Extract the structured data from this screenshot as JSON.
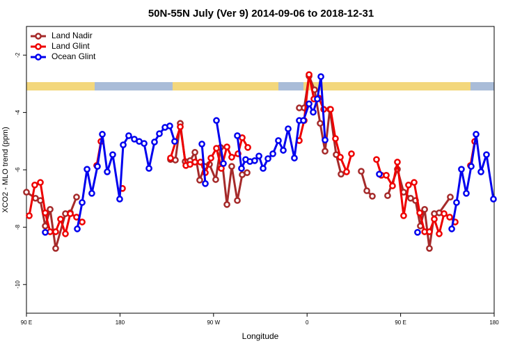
{
  "chart_data": {
    "type": "line",
    "title": "50N-55N July (Ver 9)   2014-09-06 to 2018-12-31",
    "x_label": "Longitude",
    "y_label": "XCO2 - MLO trend (ppm)",
    "xlim": [
      90,
      540
    ],
    "ylim": [
      -11,
      -1
    ],
    "xticks": [
      {
        "value": 90,
        "label": "90 E"
      },
      180,
      {
        "value": 270,
        "label": "90 W"
      },
      {
        "value": 360,
        "label": "0"
      },
      {
        "value": 450,
        "label": "90 E"
      },
      {
        "value": 540,
        "label": "180"
      }
    ],
    "yticks": [
      -10,
      -8,
      -6,
      -4,
      -2
    ],
    "legend": "top-left",
    "series": [
      {
        "name": "Land Nadir",
        "color": "#a52a2a",
        "x": [
          90,
          98.7,
          103.4,
          108.1,
          112.8,
          118.1,
          127.5,
          132.2,
          138.2,
          null,
          228.6,
          233.3,
          238.0,
          242.7,
          247.4,
          252.1,
          256.7,
          261.4,
          266.1,
          272.1,
          276.8,
          282.9,
          287.5,
          292.9,
          297.6,
          302.3,
          null,
          352.5,
          357.2,
          361.9,
          367.2,
          372.6,
          377.3,
          381.9,
          388.0,
          392.7,
          null,
          412.1,
          417.5,
          422.8,
          null,
          437.5,
          446.9,
          452.9,
          459.6,
          464.3,
          469.0,
          473.1,
          477.7,
          482.4,
          487.1,
          497.8
        ],
        "values": [
          -6.78,
          -6.99,
          -7.07,
          -7.96,
          -7.38,
          -8.74,
          -7.53,
          -7.5,
          -6.95,
          null,
          -5.64,
          -5.66,
          -4.38,
          -5.71,
          -5.68,
          -5.39,
          -6.36,
          -5.88,
          -5.81,
          -6.34,
          -5.22,
          -7.21,
          -5.88,
          -7.07,
          -6.17,
          -6.1,
          null,
          -3.84,
          -3.84,
          -2.73,
          -3.21,
          -4.38,
          -5.35,
          -3.89,
          -5.47,
          -6.15,
          null,
          -6.05,
          -6.73,
          -6.92,
          null,
          -6.9,
          -5.98,
          -6.78,
          -6.99,
          -7.07,
          -7.96,
          -7.38,
          -8.74,
          -7.53,
          -7.5,
          -6.95
        ]
      },
      {
        "name": "Land Glint",
        "color": "#ee0000",
        "x": [
          92.7,
          98.0,
          103.4,
          108.1,
          112.8,
          118.1,
          122.8,
          127.5,
          132.2,
          138.2,
          143.6,
          null,
          157.6,
          161.7,
          null,
          182.4,
          null,
          228.6,
          238.0,
          243.4,
          247.4,
          252.1,
          257.4,
          262.1,
          267.5,
          272.8,
          277.5,
          282.9,
          287.5,
          293.6,
          297.6,
          303.0,
          null,
          352.5,
          357.2,
          361.9,
          366.6,
          371.3,
          376.0,
          382.6,
          387.3,
          392.0,
          398.0,
          402.7,
          null,
          426.8,
          431.5,
          436.2,
          442.2,
          446.9,
          452.9,
          457.6,
          463.0,
          468.4,
          473.1,
          477.7,
          482.4,
          487.1,
          491.8,
          497.2,
          502.5,
          null,
          517.2,
          521.3
        ],
        "values": [
          -7.6,
          -6.53,
          -6.44,
          -7.5,
          -8.16,
          -8.16,
          -7.72,
          -8.23,
          -7.53,
          -7.65,
          -7.82,
          null,
          -5.85,
          -5.01,
          null,
          -6.65,
          null,
          -5.59,
          -4.5,
          -5.85,
          -5.81,
          -5.73,
          -5.73,
          -6.1,
          -5.59,
          -5.25,
          -5.95,
          -5.2,
          -5.56,
          -5.44,
          -4.88,
          -5.22,
          null,
          -4.98,
          -4.28,
          -2.68,
          -3.53,
          -3.5,
          -3.89,
          -3.89,
          -4.91,
          -5.56,
          -6.07,
          -5.44,
          null,
          -5.64,
          -6.19,
          -6.19,
          -6.56,
          -5.73,
          -7.6,
          -6.53,
          -6.44,
          -7.5,
          -8.16,
          -8.16,
          -7.72,
          -8.23,
          -7.53,
          -7.65,
          -7.82,
          null,
          -5.85,
          -5.01
        ]
      },
      {
        "name": "Ocean Glint",
        "color": "#0000ee",
        "x": [
          108.1,
          null,
          138.9,
          143.6,
          148.3,
          152.9,
          158.3,
          163.0,
          167.7,
          173.0,
          179.7,
          183.1,
          188.4,
          193.8,
          198.5,
          203.2,
          207.9,
          213.2,
          217.9,
          223.3,
          227.9,
          232.6,
          null,
          258.8,
          262.1,
          null,
          272.8,
          279.5,
          null,
          292.9,
          296.9,
          300.9,
          305.0,
          309.6,
          313.7,
          317.7,
          322.4,
          327.1,
          332.4,
          337.1,
          341.8,
          347.8,
          352.5,
          356.5,
          361.9,
          365.9,
          369.9,
          373.3,
          377.3,
          null,
          429.5,
          null,
          466.3,
          null,
          499.2,
          503.8,
          508.5,
          513.2,
          517.9,
          522.6,
          527.3,
          532.6,
          539.3
        ],
        "values": [
          -8.18,
          null,
          -8.06,
          -7.14,
          -5.98,
          -6.82,
          -5.88,
          -4.76,
          -6.07,
          -5.47,
          -7.02,
          -5.13,
          -4.81,
          -4.93,
          -5.01,
          -5.08,
          -5.95,
          -5.03,
          -4.74,
          -4.52,
          -4.47,
          -5.01,
          null,
          -5.1,
          -6.48,
          null,
          -4.28,
          -5.78,
          null,
          -4.81,
          -5.95,
          -5.64,
          -5.71,
          -5.68,
          -5.52,
          -5.95,
          -5.61,
          -5.44,
          -4.98,
          -5.32,
          -4.57,
          -5.59,
          -4.28,
          -4.28,
          -3.7,
          -3.99,
          -3.53,
          -2.75,
          -4.96,
          null,
          -6.15,
          null,
          -8.18,
          null,
          -8.06,
          -7.14,
          -5.98,
          -6.82,
          -5.88,
          -4.76,
          -6.07,
          -5.47,
          -7.02
        ]
      }
    ]
  }
}
